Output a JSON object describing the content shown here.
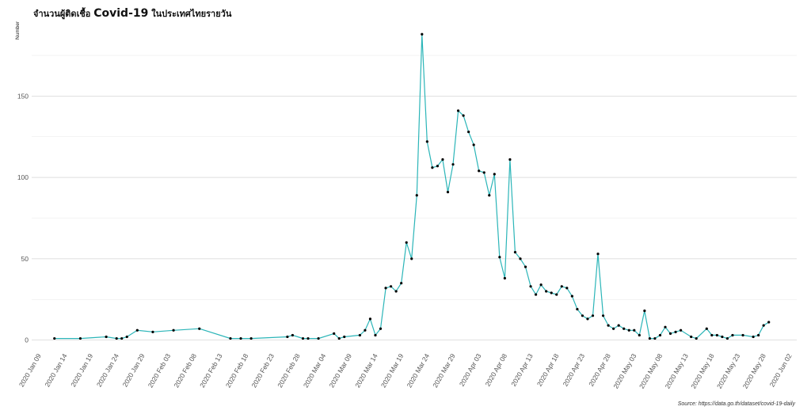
{
  "chart_data": {
    "type": "line",
    "title_prefix": "จำนวนผู้ติดเชื้อ ",
    "title_emphasis": "Covid-19",
    "title_suffix": " ในประเทศไทยรายวัน",
    "ylabel": "Number",
    "xlabel": "",
    "source": "Source: https://data.go.th/dataset/covid-19-daily",
    "ylim": [
      -7,
      193
    ],
    "y_ticks": [
      0,
      50,
      100,
      150
    ],
    "x_ticks": [
      "2020 Jan 09",
      "2020 Jan 14",
      "2020 Jan 19",
      "2020 Jan 24",
      "2020 Jan 29",
      "2020 Feb 03",
      "2020 Feb 08",
      "2020 Feb 13",
      "2020 Feb 18",
      "2020 Feb 23",
      "2020 Feb 28",
      "2020 Mar 04",
      "2020 Mar 09",
      "2020 Mar 14",
      "2020 Mar 19",
      "2020 Mar 24",
      "2020 Mar 29",
      "2020 Apr 03",
      "2020 Apr 08",
      "2020 Apr 13",
      "2020 Apr 18",
      "2020 Apr 23",
      "2020 Apr 28",
      "2020 May 03",
      "2020 May 08",
      "2020 May 13",
      "2020 May 18",
      "2020 May 23",
      "2020 May 28",
      "2020 Jun 02"
    ],
    "grid": true,
    "line_color": "#2bb5b8",
    "point_color": "#000000",
    "series": [
      {
        "x": [
          "2020-01-12",
          "2020-01-17",
          "2020-01-22",
          "2020-01-24",
          "2020-01-25",
          "2020-01-26",
          "2020-01-28",
          "2020-01-31",
          "2020-02-04",
          "2020-02-09",
          "2020-02-15",
          "2020-02-17",
          "2020-02-19",
          "2020-02-26",
          "2020-02-27",
          "2020-02-29",
          "2020-03-01",
          "2020-03-03",
          "2020-03-06",
          "2020-03-07",
          "2020-03-08",
          "2020-03-11",
          "2020-03-12",
          "2020-03-13",
          "2020-03-14",
          "2020-03-15",
          "2020-03-16",
          "2020-03-17",
          "2020-03-18",
          "2020-03-19",
          "2020-03-20",
          "2020-03-21",
          "2020-03-22",
          "2020-03-23",
          "2020-03-24",
          "2020-03-25",
          "2020-03-26",
          "2020-03-27",
          "2020-03-28",
          "2020-03-29",
          "2020-03-30",
          "2020-03-31",
          "2020-04-01",
          "2020-04-02",
          "2020-04-03",
          "2020-04-04",
          "2020-04-05",
          "2020-04-06",
          "2020-04-07",
          "2020-04-08",
          "2020-04-09",
          "2020-04-10",
          "2020-04-11",
          "2020-04-12",
          "2020-04-13",
          "2020-04-14",
          "2020-04-15",
          "2020-04-16",
          "2020-04-17",
          "2020-04-18",
          "2020-04-19",
          "2020-04-20",
          "2020-04-21",
          "2020-04-22",
          "2020-04-23",
          "2020-04-24",
          "2020-04-25",
          "2020-04-26",
          "2020-04-27",
          "2020-04-28",
          "2020-04-29",
          "2020-04-30",
          "2020-05-01",
          "2020-05-02",
          "2020-05-03",
          "2020-05-04",
          "2020-05-05",
          "2020-05-06",
          "2020-05-07",
          "2020-05-08",
          "2020-05-09",
          "2020-05-10",
          "2020-05-11",
          "2020-05-12",
          "2020-05-14",
          "2020-05-15",
          "2020-05-17",
          "2020-05-18",
          "2020-05-19",
          "2020-05-20",
          "2020-05-21",
          "2020-05-22",
          "2020-05-24",
          "2020-05-26",
          "2020-05-27",
          "2020-05-28",
          "2020-05-29"
        ],
        "y": [
          1,
          1,
          2,
          1,
          1,
          2,
          6,
          5,
          6,
          7,
          1,
          1,
          1,
          2,
          3,
          1,
          1,
          1,
          4,
          1,
          2,
          3,
          6,
          13,
          3,
          7,
          32,
          33,
          30,
          35,
          60,
          50,
          89,
          188,
          122,
          106,
          107,
          111,
          91,
          108,
          141,
          138,
          128,
          120,
          104,
          103,
          89,
          102,
          51,
          38,
          111,
          54,
          50,
          45,
          33,
          28,
          34,
          30,
          29,
          28,
          33,
          32,
          27,
          19,
          15,
          13,
          15,
          53,
          15,
          9,
          7,
          9,
          7,
          6,
          6,
          3,
          18,
          1,
          1,
          3,
          8,
          4,
          5,
          6,
          2,
          1,
          7,
          3,
          3,
          2,
          1,
          3,
          3,
          2,
          3,
          9,
          11
        ]
      }
    ]
  }
}
